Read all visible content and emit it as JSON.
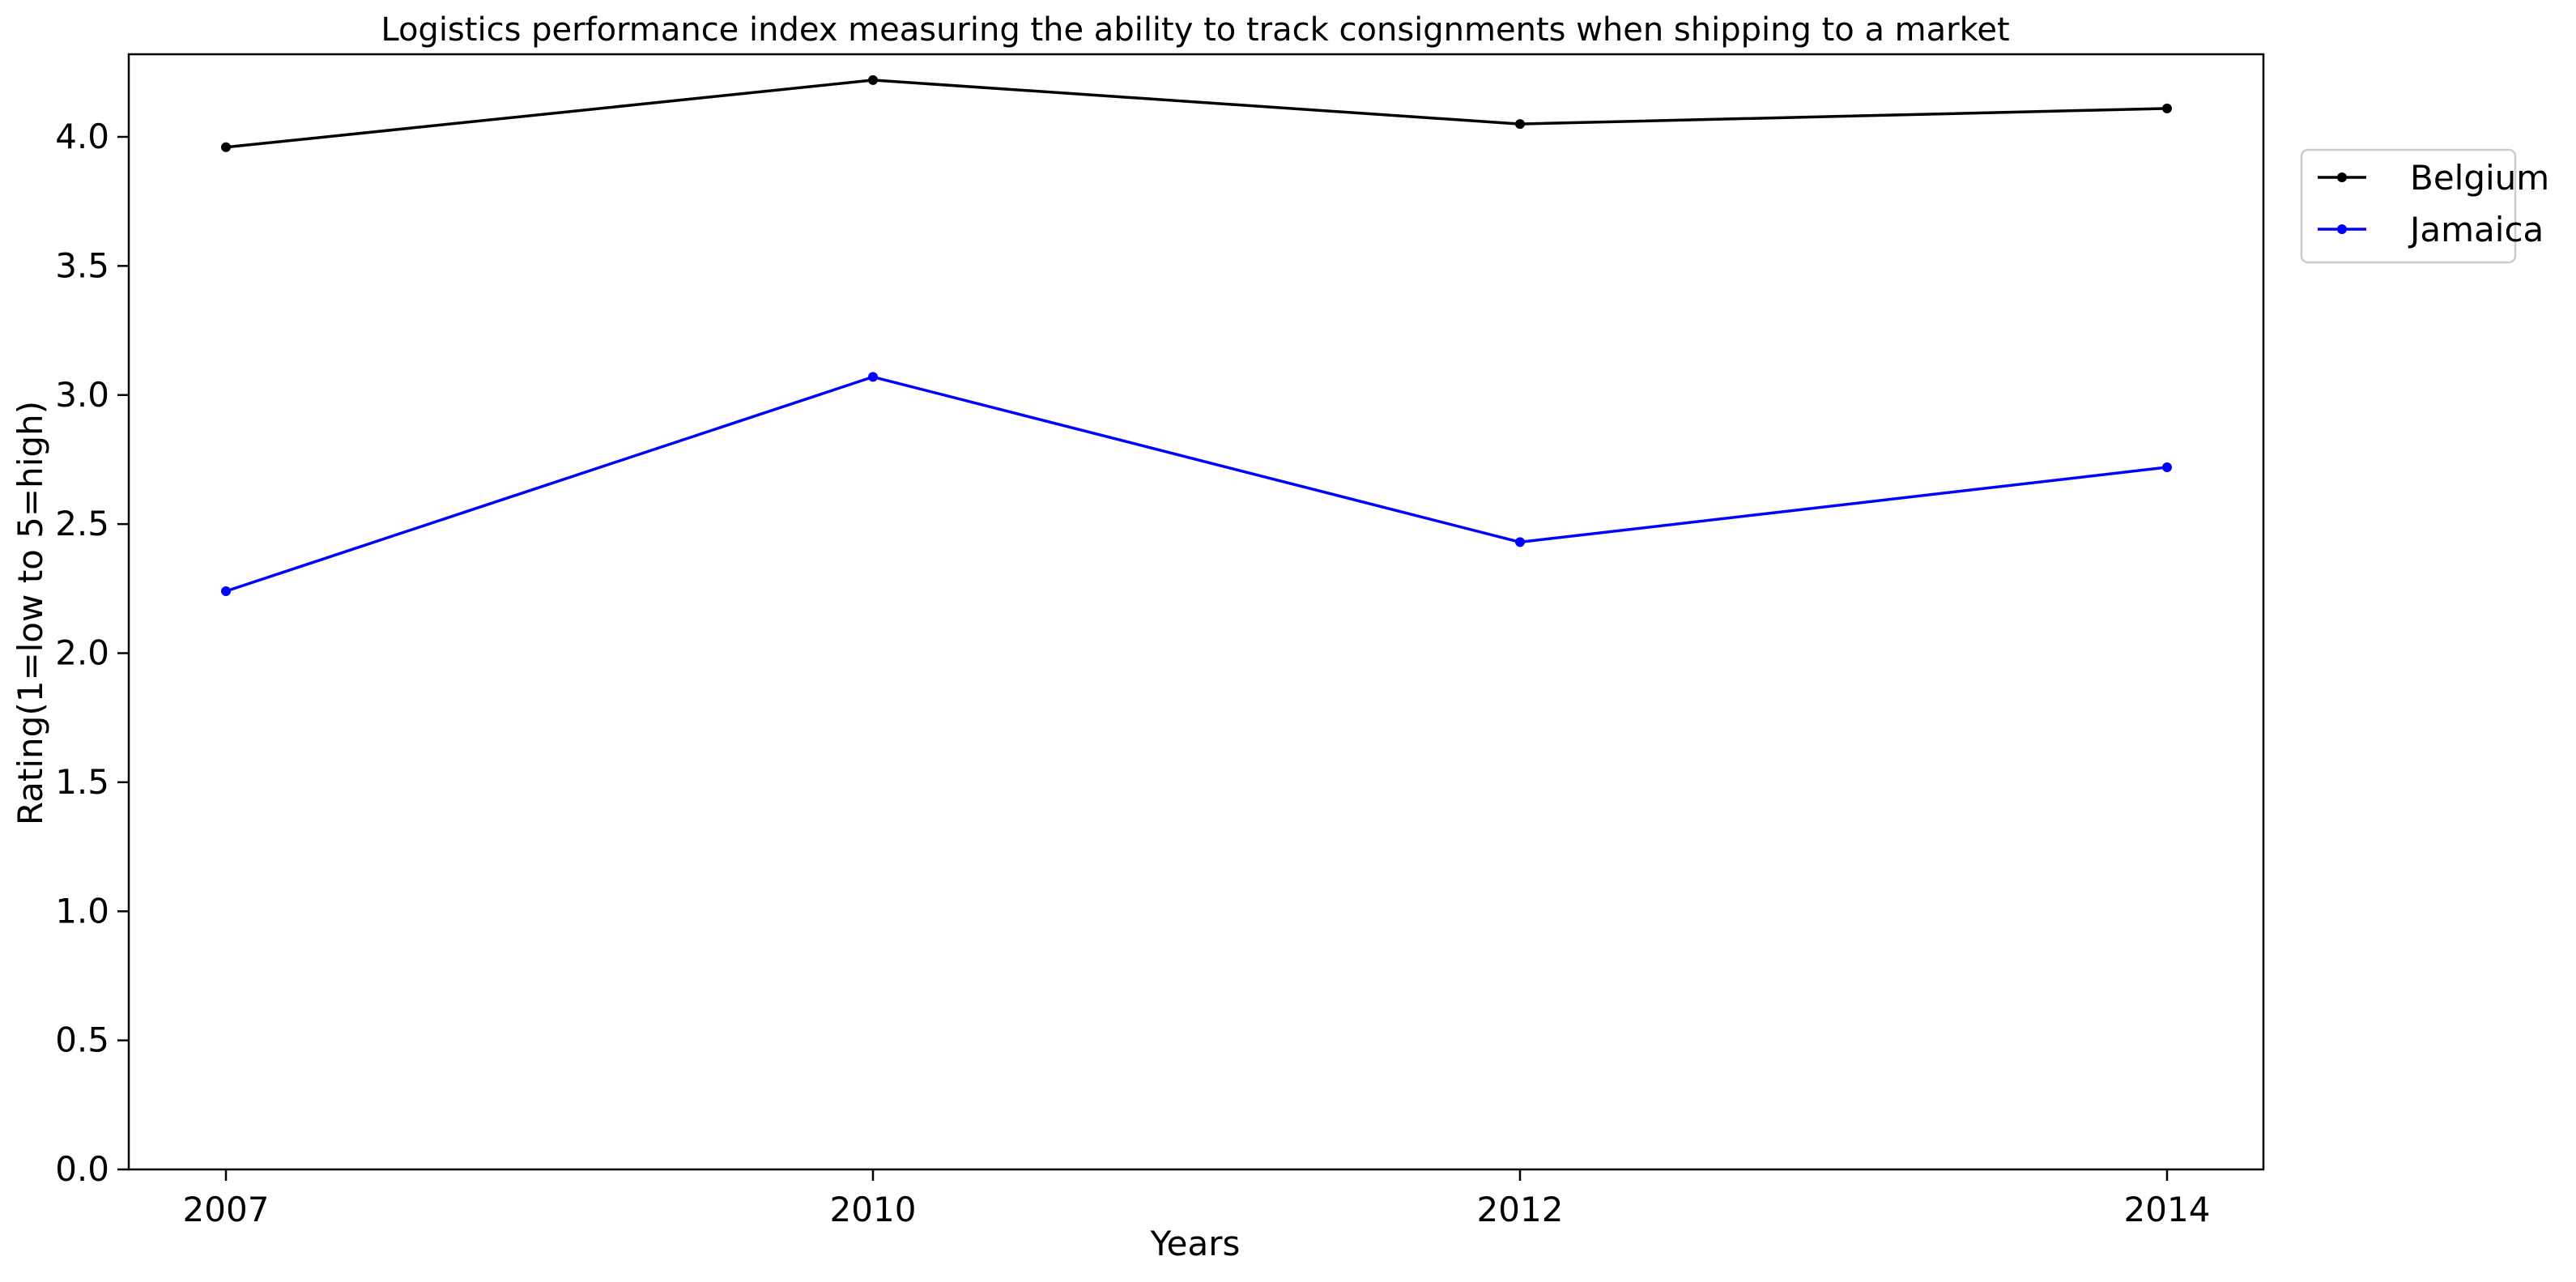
{
  "chart_data": {
    "type": "line",
    "title": "Logistics performance index measuring the ability to track consignments when shipping to a market",
    "xlabel": "Years",
    "ylabel": "Rating(1=low to 5=high)",
    "categories": [
      "2007",
      "2010",
      "2012",
      "2014"
    ],
    "ylim": [
      0,
      4.32
    ],
    "yticks": [
      0.0,
      0.5,
      1.0,
      1.5,
      2.0,
      2.5,
      3.0,
      3.5,
      4.0
    ],
    "ytick_labels": [
      "0.0",
      "0.5",
      "1.0",
      "1.5",
      "2.0",
      "2.5",
      "3.0",
      "3.5",
      "4.0"
    ],
    "grid": false,
    "legend_position": "top-right, outside plot",
    "series": [
      {
        "name": "Belgium",
        "color": "#000000",
        "values": [
          3.96,
          4.22,
          4.05,
          4.11
        ]
      },
      {
        "name": "Jamaica",
        "color": "#0000ff",
        "values": [
          2.24,
          3.07,
          2.43,
          2.72
        ]
      }
    ]
  }
}
